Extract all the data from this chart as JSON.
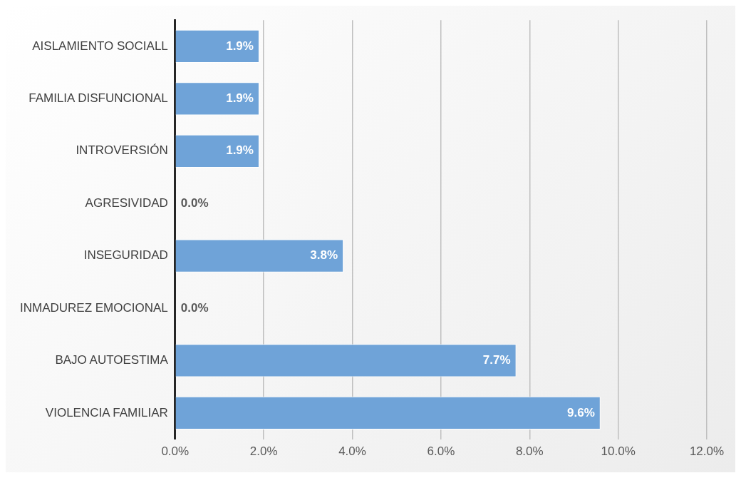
{
  "chart_data": {
    "type": "bar",
    "orientation": "horizontal",
    "categories": [
      "AISLAMIENTO SOCIALL",
      "FAMILIA DISFUNCIONAL",
      "INTROVERSIÓN",
      "AGRESIVIDAD",
      "INSEGURIDAD",
      "INMADUREZ EMOCIONAL",
      "BAJO AUTOESTIMA",
      "VIOLENCIA FAMILIAR"
    ],
    "values": [
      1.9,
      1.9,
      1.9,
      0,
      3.8,
      0,
      7.7,
      9.6
    ],
    "value_labels": [
      "1.9%",
      "1.9%",
      "1.9%",
      "0.0%",
      "3.8%",
      "0.0%",
      "7.7%",
      "9.6%"
    ],
    "color": "#6fa3d8",
    "xlim": [
      0,
      12
    ],
    "xticks": [
      {
        "value": 0,
        "label": "0.0%"
      },
      {
        "value": 2,
        "label": "2.0%"
      },
      {
        "value": 4,
        "label": "4.0%"
      },
      {
        "value": 6,
        "label": "6.0%"
      },
      {
        "value": 8,
        "label": "8.0%"
      },
      {
        "value": 10,
        "label": "10.0%"
      },
      {
        "value": 12,
        "label": "12.0%"
      }
    ],
    "grid": "x"
  }
}
